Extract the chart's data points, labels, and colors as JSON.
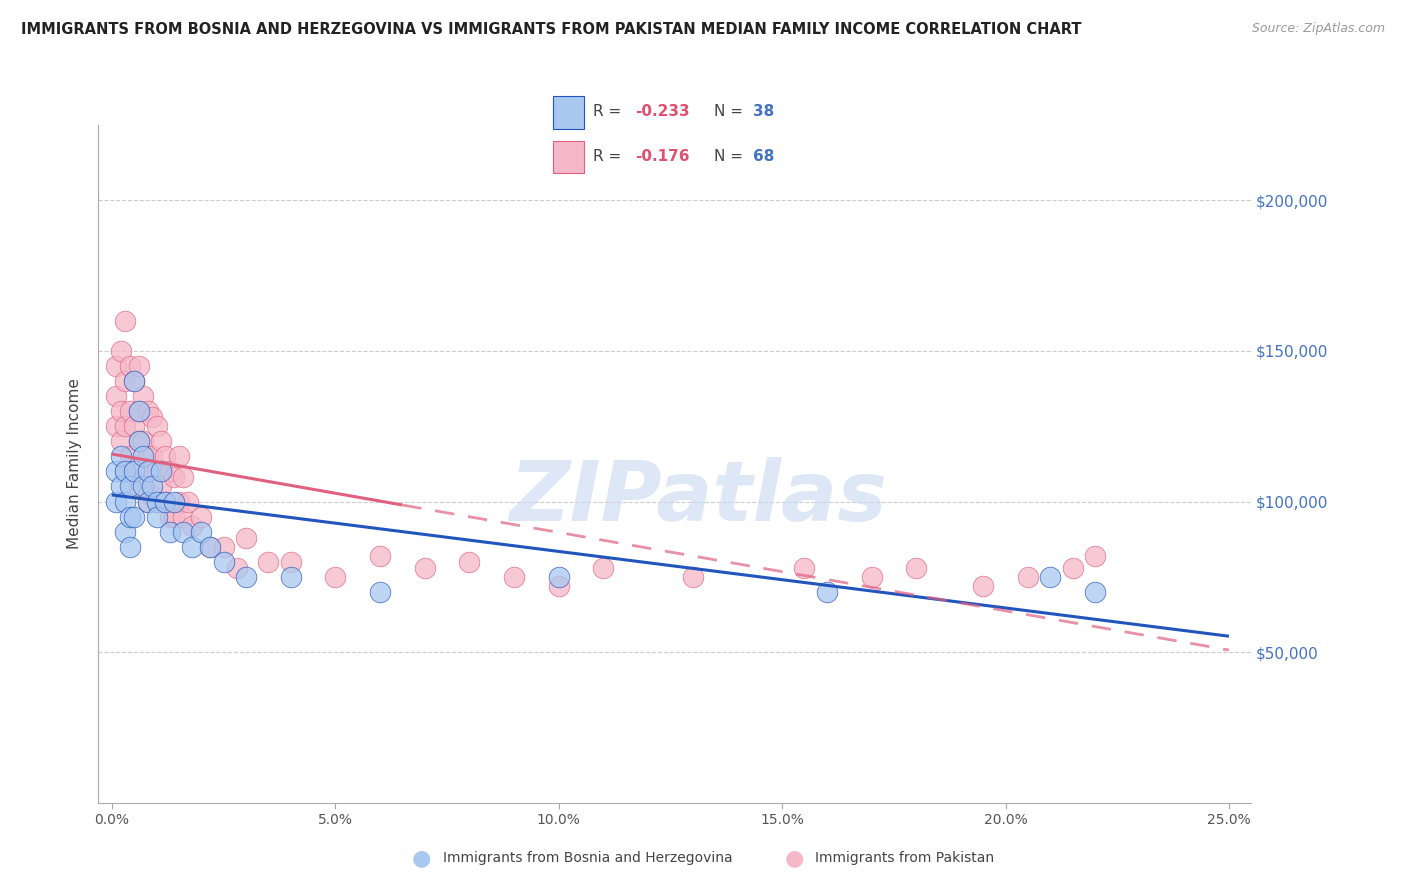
{
  "title": "IMMIGRANTS FROM BOSNIA AND HERZEGOVINA VS IMMIGRANTS FROM PAKISTAN MEDIAN FAMILY INCOME CORRELATION CHART",
  "source": "Source: ZipAtlas.com",
  "ylabel": "Median Family Income",
  "y_tick_labels": [
    "$50,000",
    "$100,000",
    "$150,000",
    "$200,000"
  ],
  "y_tick_values": [
    50000,
    100000,
    150000,
    200000
  ],
  "ytick_color": "#4472C4",
  "legend_bosnia_r": "-0.233",
  "legend_bosnia_n": "38",
  "legend_pakistan_r": "-0.176",
  "legend_pakistan_n": "68",
  "bosnia_color": "#A8C8F0",
  "pakistan_color": "#F5B8C8",
  "bosnia_line_color": "#2255BB",
  "pakistan_line_color": "#E06080",
  "watermark_text": "ZIPatlas",
  "bosnia_x": [
    0.001,
    0.001,
    0.002,
    0.002,
    0.003,
    0.003,
    0.003,
    0.004,
    0.004,
    0.004,
    0.005,
    0.005,
    0.005,
    0.006,
    0.006,
    0.007,
    0.007,
    0.008,
    0.008,
    0.009,
    0.01,
    0.01,
    0.011,
    0.012,
    0.013,
    0.014,
    0.016,
    0.018,
    0.02,
    0.022,
    0.025,
    0.03,
    0.04,
    0.06,
    0.1,
    0.16,
    0.21,
    0.22
  ],
  "bosnia_y": [
    110000,
    100000,
    115000,
    105000,
    110000,
    100000,
    90000,
    105000,
    95000,
    85000,
    110000,
    95000,
    140000,
    130000,
    120000,
    115000,
    105000,
    110000,
    100000,
    105000,
    100000,
    95000,
    110000,
    100000,
    90000,
    100000,
    90000,
    85000,
    90000,
    85000,
    80000,
    75000,
    75000,
    70000,
    75000,
    70000,
    75000,
    70000
  ],
  "pakistan_x": [
    0.001,
    0.001,
    0.001,
    0.002,
    0.002,
    0.002,
    0.003,
    0.003,
    0.003,
    0.003,
    0.004,
    0.004,
    0.004,
    0.005,
    0.005,
    0.005,
    0.006,
    0.006,
    0.006,
    0.006,
    0.007,
    0.007,
    0.007,
    0.008,
    0.008,
    0.008,
    0.009,
    0.009,
    0.009,
    0.01,
    0.01,
    0.01,
    0.011,
    0.011,
    0.012,
    0.012,
    0.013,
    0.013,
    0.014,
    0.014,
    0.015,
    0.015,
    0.016,
    0.016,
    0.017,
    0.018,
    0.02,
    0.022,
    0.025,
    0.028,
    0.03,
    0.035,
    0.04,
    0.05,
    0.06,
    0.07,
    0.08,
    0.09,
    0.1,
    0.11,
    0.13,
    0.155,
    0.17,
    0.18,
    0.195,
    0.205,
    0.215,
    0.22
  ],
  "pakistan_y": [
    145000,
    135000,
    125000,
    150000,
    130000,
    120000,
    160000,
    140000,
    125000,
    110000,
    145000,
    130000,
    115000,
    140000,
    125000,
    110000,
    145000,
    130000,
    120000,
    105000,
    135000,
    120000,
    108000,
    130000,
    115000,
    100000,
    128000,
    115000,
    102000,
    125000,
    110000,
    100000,
    120000,
    105000,
    115000,
    100000,
    110000,
    95000,
    108000,
    95000,
    115000,
    100000,
    108000,
    95000,
    100000,
    92000,
    95000,
    85000,
    85000,
    78000,
    88000,
    80000,
    80000,
    75000,
    82000,
    78000,
    80000,
    75000,
    72000,
    78000,
    75000,
    78000,
    75000,
    78000,
    72000,
    75000,
    78000,
    82000
  ],
  "xlim": [
    -0.003,
    0.255
  ],
  "ylim": [
    0,
    225000
  ],
  "xticks": [
    0.0,
    0.05,
    0.1,
    0.15,
    0.2,
    0.25
  ],
  "xtick_labels": [
    "0.0%",
    "5.0%",
    "10.0%",
    "15.0%",
    "20.0%",
    "25.0%"
  ]
}
